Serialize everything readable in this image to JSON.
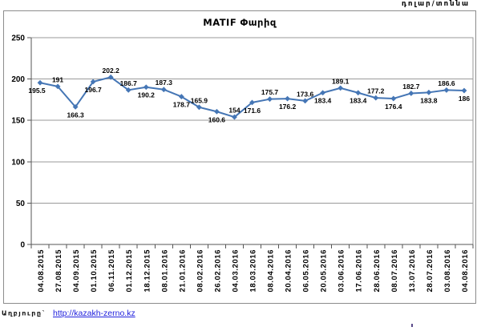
{
  "units_label": "դոլար/տոննա",
  "source": {
    "prefix": "Աղբյուրը`",
    "link": "http://kazakh-zerno.kz",
    "link_color": "#2222dd"
  },
  "chart_data": {
    "type": "line",
    "title": "MATIF Փարիզ",
    "xlabel": "",
    "ylabel": "",
    "ylim": [
      0,
      250
    ],
    "yticks": [
      0,
      50,
      100,
      150,
      200,
      250
    ],
    "grid": true,
    "legend": false,
    "line_color": "#4576b5",
    "marker": "diamond",
    "categories": [
      "04.08.2015",
      "27.08.2015",
      "04.09.2015",
      "01.10.2015",
      "06.11.2015",
      "01.12.2015",
      "18.12.2015",
      "08.01.2016",
      "21.01.2016",
      "08.02.2016",
      "26.02.2016",
      "04.03.2016",
      "18.03.2016",
      "08.04.2016",
      "20.04.2016",
      "06.05.2016",
      "20.05.2016",
      "03.06.2016",
      "17.06.2016",
      "28.06.2016",
      "08.07.2016",
      "13.07.2016",
      "28.07.2016",
      "03.08.2016",
      "04.08.2016"
    ],
    "values": [
      195.5,
      191,
      166.3,
      196.7,
      202.2,
      186.7,
      190.2,
      187.3,
      178.7,
      165.9,
      160.6,
      154,
      171.6,
      175.7,
      176.2,
      173.6,
      183.4,
      189.1,
      183.4,
      177.2,
      176.4,
      182.7,
      183.8,
      186.6,
      186
    ],
    "label_positions": [
      "below",
      "above",
      "below",
      "below",
      "above",
      "above",
      "below",
      "above",
      "below",
      "above",
      "below",
      "above",
      "below",
      "above",
      "below",
      "above",
      "below",
      "above",
      "below",
      "above",
      "below",
      "above",
      "below",
      "above",
      "below"
    ]
  }
}
